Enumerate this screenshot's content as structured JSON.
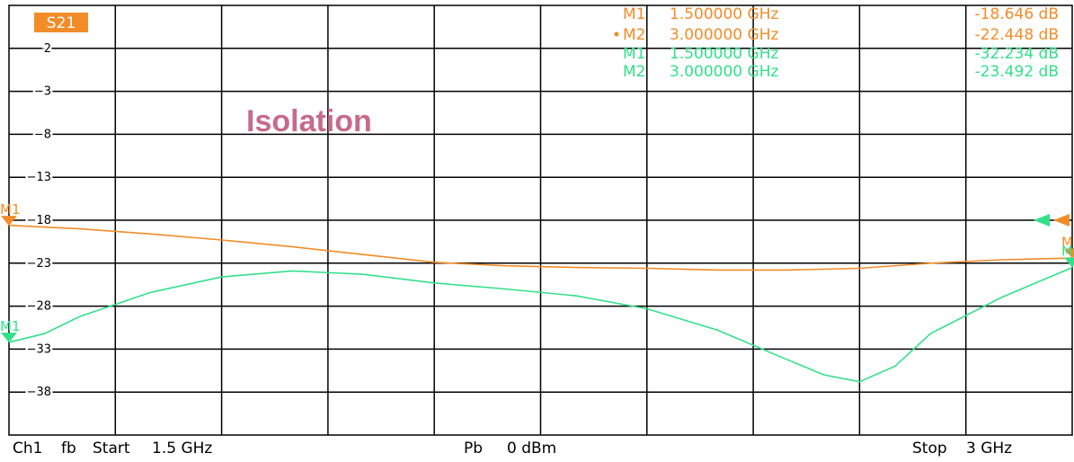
{
  "chart_data": {
    "type": "line",
    "trace_label": "S21",
    "annotation": "Isolation",
    "xlim": [
      1.5,
      3.0
    ],
    "ylim": [
      -43,
      7
    ],
    "yticks": [
      2,
      -3,
      -8,
      -13,
      -18,
      -23,
      -28,
      -33,
      -38
    ],
    "grid": true,
    "series": [
      {
        "color": "#f28c28",
        "x": [
          1.5,
          1.6,
          1.7,
          1.8,
          1.9,
          2.0,
          2.1,
          2.2,
          2.3,
          2.4,
          2.5,
          2.6,
          2.7,
          2.8,
          2.9,
          3.0
        ],
        "y": [
          -18.6,
          -19.0,
          -19.6,
          -20.3,
          -21.1,
          -22.0,
          -22.9,
          -23.3,
          -23.5,
          -23.6,
          -23.8,
          -23.8,
          -23.6,
          -23.0,
          -22.6,
          -22.4
        ]
      },
      {
        "color": "#33e08a",
        "x": [
          1.5,
          1.55,
          1.6,
          1.7,
          1.8,
          1.9,
          2.0,
          2.1,
          2.2,
          2.3,
          2.4,
          2.5,
          2.6,
          2.65,
          2.7,
          2.75,
          2.8,
          2.9,
          3.0
        ],
        "y": [
          -32.2,
          -31.2,
          -29.2,
          -26.4,
          -24.6,
          -23.9,
          -24.3,
          -25.3,
          -26.0,
          -26.8,
          -28.3,
          -30.8,
          -34.3,
          -36.0,
          -36.8,
          -35.0,
          -31.2,
          -27.0,
          -23.5
        ]
      }
    ],
    "markers": [
      {
        "label": "M1",
        "freq": "1.500000 GHz",
        "value": "-18.646 dB",
        "color": "#f28c28",
        "active": false
      },
      {
        "label": "M2",
        "freq": "3.000000 GHz",
        "value": "-22.448 dB",
        "color": "#f28c28",
        "active": true
      },
      {
        "label": "M1",
        "freq": "1.500000 GHz",
        "value": "-32.234 dB",
        "color": "#33e08a",
        "active": false
      },
      {
        "label": "M2",
        "freq": "3.000000 GHz",
        "value": "-23.492 dB",
        "color": "#33e08a",
        "active": false
      }
    ],
    "marker_flags": [
      {
        "label": "M1",
        "x": 1.5,
        "y": -18.646,
        "color": "#f28c28"
      },
      {
        "label": "M1",
        "x": 1.5,
        "y": -32.234,
        "color": "#33e08a"
      },
      {
        "label": "M",
        "x": 3.0,
        "y": -22.448,
        "color": "#f28c28"
      },
      {
        "label": "M",
        "x": 3.0,
        "y": -23.492,
        "color": "#33e08a"
      }
    ],
    "reference_arrows": [
      {
        "y": -18,
        "color": "#33e08a"
      },
      {
        "y": -18,
        "color": "#f28c28"
      }
    ]
  },
  "footer": {
    "channel": "Ch1",
    "mode": "fb",
    "start_label": "Start",
    "start_value": "1.5 GHz",
    "power_label": "Pb",
    "power_value": "0 dBm",
    "stop_label": "Stop",
    "stop_value": "3 GHz"
  }
}
